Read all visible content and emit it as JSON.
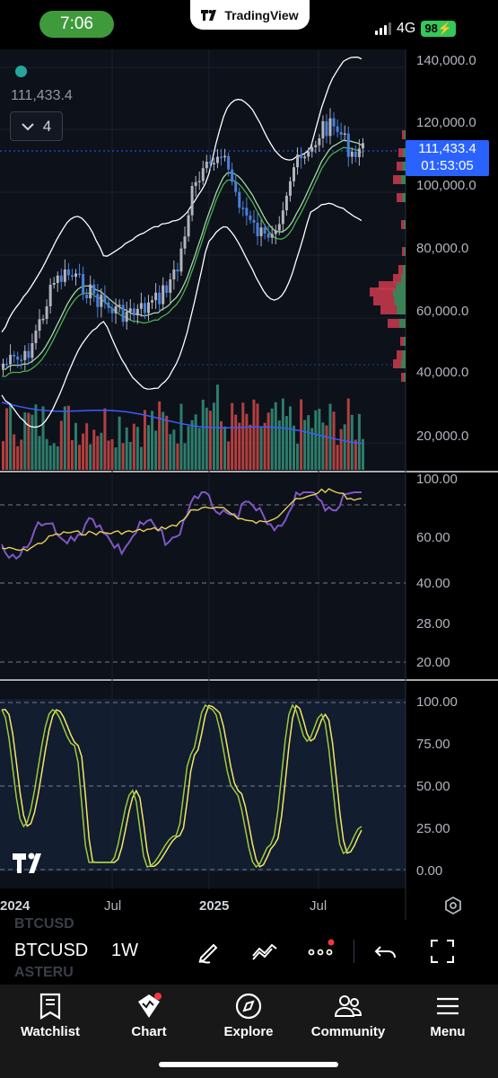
{
  "status_bar": {
    "time": "7:06",
    "app_name": "TradingView",
    "network": "4G",
    "battery": "98"
  },
  "chart": {
    "last_price_label": "111,433.4",
    "collapsed_count": "4",
    "price_tag": {
      "price": "111,433.4",
      "countdown": "01:53:05"
    },
    "price_axis": [
      "140,000.0",
      "120,000.0",
      "100,000.0",
      "80,000.0",
      "60,000.0",
      "40,000.0",
      "20,000.0"
    ],
    "rsi_axis": [
      "100.00",
      "60.00",
      "40.00",
      "28.00",
      "20.00"
    ],
    "stoch_axis": [
      "100.00",
      "75.00",
      "50.00",
      "25.00",
      "0.00"
    ],
    "time_axis": [
      "2024",
      "Jul",
      "2025",
      "Jul"
    ],
    "watermark": "TV",
    "colors": {
      "bg": "#000000",
      "pane_bg": "#161c2b",
      "up": "#4a7fd9",
      "up_alt": "#b2b5be",
      "down": "#4a7fd9",
      "ema_fast": "#4caf50",
      "ema_slow": "#a5d6a7",
      "bands": "#ffffff",
      "rsi": "#7e57c2",
      "rsi_ma": "#e6d15a",
      "stoch_k": "#9ccc3b",
      "stoch_d": "#f5e663",
      "vol_up": "#2e7d6b",
      "vol_down": "#b2403f",
      "vol_ma": "#3d5afe"
    }
  },
  "toolbar": {
    "symbol": "BTCUSD",
    "interval": "1W",
    "ghost_symbols": [
      "BTCUSD",
      "ASTERU"
    ]
  },
  "bottom_nav": [
    {
      "label": "Watchlist",
      "icon": "watchlist-icon"
    },
    {
      "label": "Chart",
      "icon": "chart-icon"
    },
    {
      "label": "Explore",
      "icon": "compass-icon"
    },
    {
      "label": "Community",
      "icon": "community-icon"
    },
    {
      "label": "Menu",
      "icon": "menu-icon"
    }
  ]
}
